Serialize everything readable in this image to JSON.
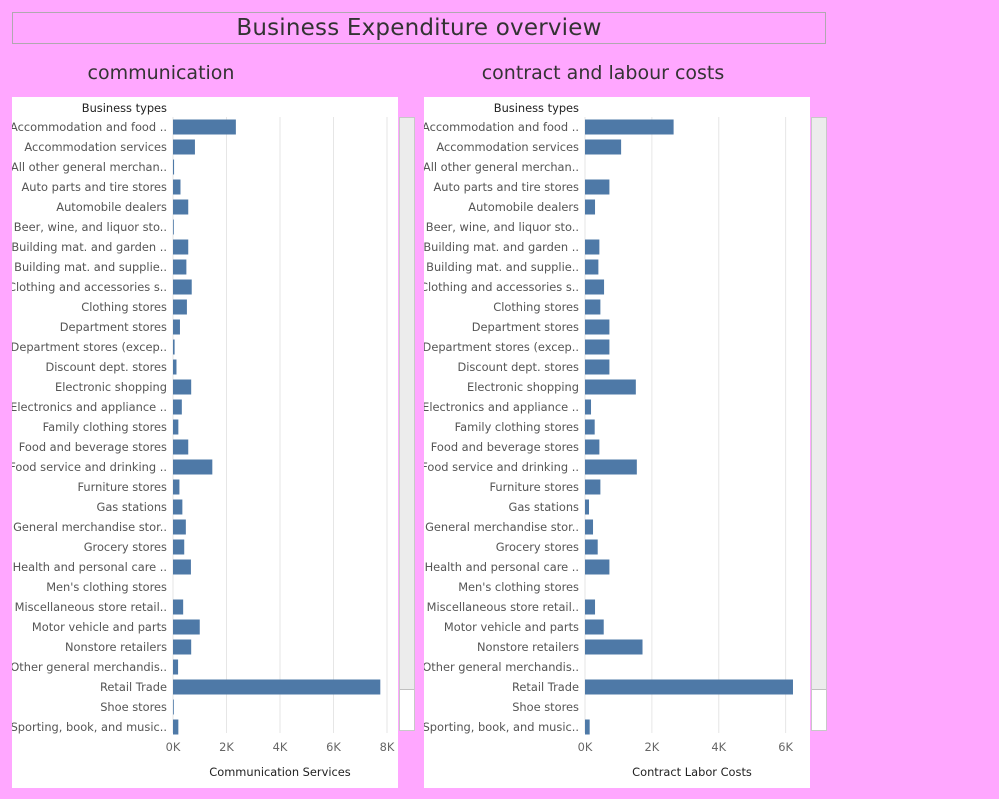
{
  "dashboard": {
    "title": "Business Expenditure overview"
  },
  "colors": {
    "background": "#ffa7ff",
    "bar": "#4e79a7",
    "grid": "#e6e6e6"
  },
  "chart_data": [
    {
      "type": "bar",
      "orientation": "horizontal",
      "title": "communication",
      "row_header": "Business types",
      "xlabel": "Communication Services",
      "xlim": [
        0,
        8000
      ],
      "ticks": [
        0,
        2000,
        4000,
        6000,
        8000
      ],
      "tick_labels": [
        "0K",
        "2K",
        "4K",
        "6K",
        "8K"
      ],
      "grid": true,
      "categories": [
        "Accommodation and food ..",
        "Accommodation services",
        "All other general merchan..",
        "Auto parts and tire stores",
        "Automobile dealers",
        "Beer, wine, and liquor sto..",
        "Building mat. and garden ..",
        "Building mat. and supplie..",
        "Clothing and accessories s..",
        "Clothing stores",
        "Department stores",
        "Department stores (excep..",
        "Discount dept. stores",
        "Electronic shopping",
        "Electronics and appliance ..",
        "Family clothing stores",
        "Food and beverage stores",
        "Food service and drinking ..",
        "Furniture stores",
        "Gas stations",
        "General merchandise stor..",
        "Grocery stores",
        "Health and personal care ..",
        "Men's clothing stores",
        "Miscellaneous store retail..",
        "Motor vehicle and parts",
        "Nonstore retailers",
        "Other general merchandis..",
        "Retail Trade",
        "Shoe stores",
        "Sporting, book, and music.."
      ],
      "values": [
        2350,
        820,
        40,
        280,
        570,
        30,
        570,
        500,
        700,
        520,
        260,
        60,
        130,
        680,
        330,
        200,
        570,
        1470,
        240,
        350,
        480,
        420,
        670,
        0,
        380,
        1000,
        680,
        190,
        7750,
        30,
        200
      ]
    },
    {
      "type": "bar",
      "orientation": "horizontal",
      "title": "contract and labour costs",
      "row_header": "Business types",
      "xlabel": "Contract Labor Costs",
      "xlim": [
        0,
        6400
      ],
      "ticks": [
        0,
        2000,
        4000,
        6000
      ],
      "tick_labels": [
        "0K",
        "2K",
        "4K",
        "6K"
      ],
      "grid": true,
      "categories": [
        "Accommodation and food ..",
        "Accommodation services",
        "All other general merchan..",
        "Auto parts and tire stores",
        "Automobile dealers",
        "Beer, wine, and liquor sto..",
        "Building mat. and garden ..",
        "Building mat. and supplie..",
        "Clothing and accessories s..",
        "Clothing stores",
        "Department stores",
        "Department stores (excep..",
        "Discount dept. stores",
        "Electronic shopping",
        "Electronics and appliance ..",
        "Family clothing stores",
        "Food and beverage stores",
        "Food service and drinking ..",
        "Furniture stores",
        "Gas stations",
        "General merchandise stor..",
        "Grocery stores",
        "Health and personal care ..",
        "Men's clothing stores",
        "Miscellaneous store retail..",
        "Motor vehicle and parts",
        "Nonstore retailers",
        "Other general merchandis..",
        "Retail Trade",
        "Shoe stores",
        "Sporting, book, and music.."
      ],
      "values": [
        2650,
        1080,
        0,
        730,
        300,
        0,
        430,
        400,
        570,
        460,
        730,
        730,
        730,
        1520,
        180,
        290,
        430,
        1550,
        460,
        120,
        240,
        380,
        730,
        0,
        300,
        560,
        1720,
        0,
        6220,
        0,
        140
      ]
    }
  ]
}
